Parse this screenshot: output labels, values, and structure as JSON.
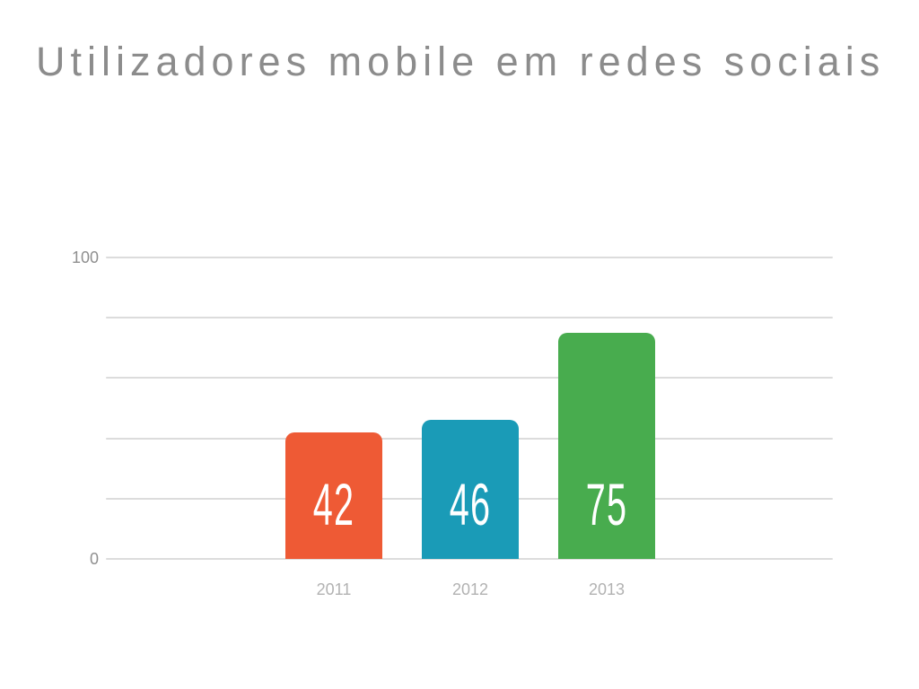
{
  "slide": {
    "title": "Utilizadores mobile em redes sociais",
    "title_color": "#8c8c8c",
    "background": "#ffffff"
  },
  "chart_data": {
    "type": "bar",
    "title": "Utilizadores mobile em redes sociais",
    "categories": [
      "2011",
      "2012",
      "2013"
    ],
    "values": [
      42,
      46,
      75
    ],
    "bar_colors": [
      "#ee5a35",
      "#1a9bb7",
      "#48ac4e"
    ],
    "value_labels": [
      "42",
      "46",
      "75"
    ],
    "value_label_color": "#ffffff",
    "xlabel": "",
    "ylabel": "",
    "ylim": [
      0,
      100
    ],
    "ytick_labels": [
      "100",
      "0"
    ],
    "gridline_interval": 20,
    "gridline_count": 6,
    "grid": "horizontal",
    "gridline_color": "#dcdcdc",
    "ytick_color": "#8f8f8f",
    "category_label_color": "#b2b2b2",
    "legend": "none"
  }
}
